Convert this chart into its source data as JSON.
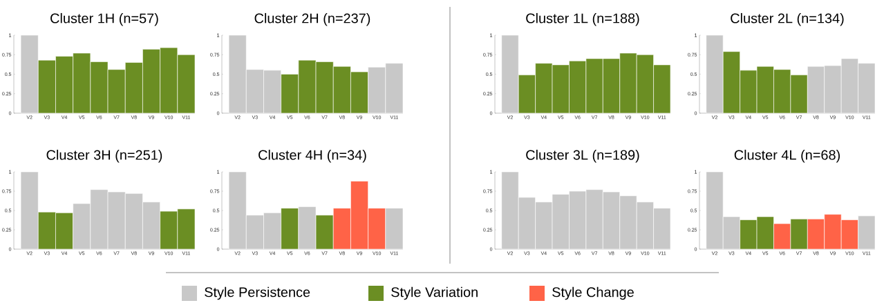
{
  "chart_data": [
    {
      "type": "bar",
      "title": "Cluster 1H   (n=57)",
      "categories": [
        "V2",
        "V3",
        "V4",
        "V5",
        "V6",
        "V7",
        "V8",
        "V9",
        "V10",
        "V11"
      ],
      "values": [
        1,
        0.68,
        0.73,
        0.77,
        0.66,
        0.56,
        0.65,
        0.82,
        0.84,
        0.75
      ],
      "colors": [
        "#c8c8c8",
        "#6b8e23",
        "#6b8e23",
        "#6b8e23",
        "#6b8e23",
        "#6b8e23",
        "#6b8e23",
        "#6b8e23",
        "#6b8e23",
        "#6b8e23"
      ],
      "ylim": [
        0,
        1
      ],
      "yticks": [
        0,
        0.25,
        0.5,
        0.75,
        1
      ]
    },
    {
      "type": "bar",
      "title": "Cluster 2H   (n=237)",
      "categories": [
        "V2",
        "V3",
        "V4",
        "V5",
        "V6",
        "V7",
        "V8",
        "V9",
        "V10",
        "V11"
      ],
      "values": [
        1,
        0.56,
        0.55,
        0.5,
        0.68,
        0.66,
        0.6,
        0.53,
        0.59,
        0.64
      ],
      "colors": [
        "#c8c8c8",
        "#c8c8c8",
        "#c8c8c8",
        "#6b8e23",
        "#6b8e23",
        "#6b8e23",
        "#6b8e23",
        "#6b8e23",
        "#c8c8c8",
        "#c8c8c8"
      ],
      "ylim": [
        0,
        1
      ],
      "yticks": [
        0,
        0.25,
        0.5,
        0.75,
        1
      ]
    },
    {
      "type": "bar",
      "title": "Cluster 1L   (n=188)",
      "categories": [
        "V2",
        "V3",
        "V4",
        "V5",
        "V6",
        "V7",
        "V8",
        "V9",
        "V10",
        "V11"
      ],
      "values": [
        1,
        0.49,
        0.64,
        0.62,
        0.67,
        0.7,
        0.7,
        0.77,
        0.75,
        0.62
      ],
      "colors": [
        "#c8c8c8",
        "#6b8e23",
        "#6b8e23",
        "#6b8e23",
        "#6b8e23",
        "#6b8e23",
        "#6b8e23",
        "#6b8e23",
        "#6b8e23",
        "#6b8e23"
      ],
      "ylim": [
        0,
        1
      ],
      "yticks": [
        0,
        0.25,
        0.5,
        0.75,
        1
      ]
    },
    {
      "type": "bar",
      "title": "Cluster 2L   (n=134)",
      "categories": [
        "V2",
        "V3",
        "V4",
        "V5",
        "V6",
        "V7",
        "V8",
        "V9",
        "V10",
        "V11"
      ],
      "values": [
        1,
        0.79,
        0.55,
        0.6,
        0.56,
        0.49,
        0.6,
        0.61,
        0.7,
        0.64
      ],
      "colors": [
        "#c8c8c8",
        "#6b8e23",
        "#6b8e23",
        "#6b8e23",
        "#6b8e23",
        "#6b8e23",
        "#c8c8c8",
        "#c8c8c8",
        "#c8c8c8",
        "#c8c8c8"
      ],
      "ylim": [
        0,
        1
      ],
      "yticks": [
        0,
        0.25,
        0.5,
        0.75,
        1
      ]
    },
    {
      "type": "bar",
      "title": "Cluster 3H   (n=251)",
      "categories": [
        "V2",
        "V3",
        "V4",
        "V5",
        "V6",
        "V7",
        "V8",
        "V9",
        "V10",
        "V11"
      ],
      "values": [
        1,
        0.48,
        0.47,
        0.59,
        0.77,
        0.74,
        0.72,
        0.61,
        0.49,
        0.52
      ],
      "colors": [
        "#c8c8c8",
        "#6b8e23",
        "#6b8e23",
        "#c8c8c8",
        "#c8c8c8",
        "#c8c8c8",
        "#c8c8c8",
        "#c8c8c8",
        "#6b8e23",
        "#6b8e23"
      ],
      "ylim": [
        0,
        1
      ],
      "yticks": [
        0,
        0.25,
        0.5,
        0.75,
        1
      ]
    },
    {
      "type": "bar",
      "title": "Cluster 4H   (n=34)",
      "categories": [
        "V2",
        "V3",
        "V4",
        "V5",
        "V6",
        "V7",
        "V8",
        "V9",
        "V10",
        "V11"
      ],
      "values": [
        1,
        0.44,
        0.47,
        0.53,
        0.55,
        0.44,
        0.53,
        0.88,
        0.53,
        0.53
      ],
      "colors": [
        "#c8c8c8",
        "#c8c8c8",
        "#c8c8c8",
        "#6b8e23",
        "#c8c8c8",
        "#6b8e23",
        "#ff6347",
        "#ff6347",
        "#ff6347",
        "#c8c8c8"
      ],
      "ylim": [
        0,
        1
      ],
      "yticks": [
        0,
        0.25,
        0.5,
        0.75,
        1
      ]
    },
    {
      "type": "bar",
      "title": "Cluster 3L   (n=189)",
      "categories": [
        "V2",
        "V3",
        "V4",
        "V5",
        "V6",
        "V7",
        "V8",
        "V9",
        "V10",
        "V11"
      ],
      "values": [
        1,
        0.67,
        0.61,
        0.71,
        0.75,
        0.77,
        0.74,
        0.69,
        0.61,
        0.53
      ],
      "colors": [
        "#c8c8c8",
        "#c8c8c8",
        "#c8c8c8",
        "#c8c8c8",
        "#c8c8c8",
        "#c8c8c8",
        "#c8c8c8",
        "#c8c8c8",
        "#c8c8c8",
        "#c8c8c8"
      ],
      "ylim": [
        0,
        1
      ],
      "yticks": [
        0,
        0.25,
        0.5,
        0.75,
        1
      ]
    },
    {
      "type": "bar",
      "title": "Cluster 4L   (n=68)",
      "categories": [
        "V2",
        "V3",
        "V4",
        "V5",
        "V6",
        "V7",
        "V8",
        "V9",
        "V10",
        "V11"
      ],
      "values": [
        1,
        0.42,
        0.38,
        0.42,
        0.33,
        0.39,
        0.39,
        0.45,
        0.38,
        0.43
      ],
      "colors": [
        "#c8c8c8",
        "#c8c8c8",
        "#6b8e23",
        "#6b8e23",
        "#ff6347",
        "#6b8e23",
        "#ff6347",
        "#ff6347",
        "#ff6347",
        "#c8c8c8"
      ],
      "ylim": [
        0,
        1
      ],
      "yticks": [
        0,
        0.25,
        0.5,
        0.75,
        1
      ]
    },
    {
      "type": "other",
      "categories": [
        "Style Persistence",
        "Style Variation",
        "Style Change"
      ],
      "colors": [
        "#c8c8c8",
        "#6b8e23",
        "#ff6347"
      ]
    }
  ]
}
